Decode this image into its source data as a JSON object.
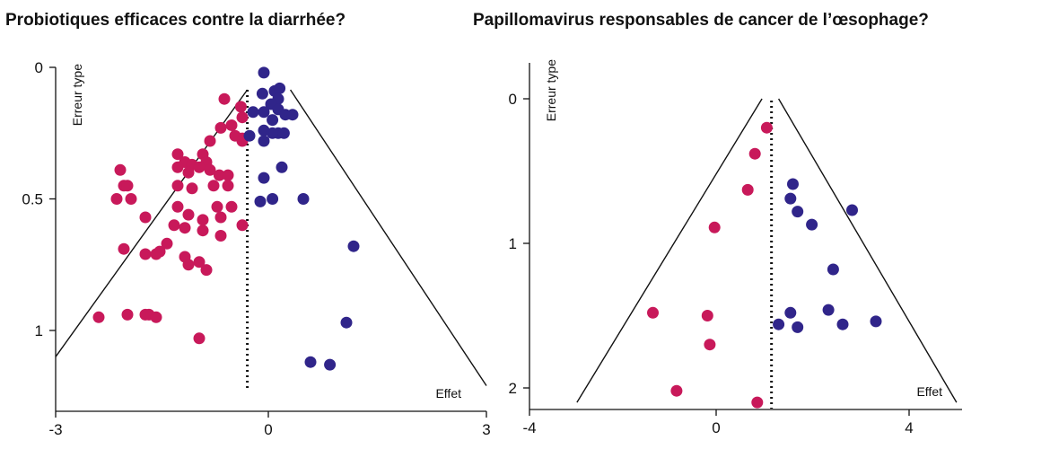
{
  "colors": {
    "red": "#c8195a",
    "blue": "#30258a",
    "ink": "#111111"
  },
  "chart_data": [
    {
      "type": "scatter",
      "title": "Probiotiques efficaces contre la diarrhée?",
      "xlabel": "Effet",
      "ylabel": "Erreur type",
      "xlim": [
        -3,
        3
      ],
      "ylim": [
        0,
        1.25
      ],
      "y_inverted": true,
      "x_ticks": [
        "-3",
        "0",
        "3"
      ],
      "y_ticks": [
        "0",
        "0.5",
        "1"
      ],
      "y_tick_values": [
        0,
        0.5,
        1
      ],
      "mean_line": -0.33,
      "funnel": {
        "apex": [
          -0.33,
          0.0
        ],
        "left_base": [
          -3.0,
          1.1
        ],
        "right_base": [
          3.0,
          1.21
        ]
      },
      "series": [
        {
          "color": "red",
          "points": [
            [
              -0.65,
              0.12
            ],
            [
              -0.42,
              0.15
            ],
            [
              -0.4,
              0.19
            ],
            [
              -0.4,
              0.27
            ],
            [
              -0.55,
              0.22
            ],
            [
              -0.7,
              0.23
            ],
            [
              -0.5,
              0.26
            ],
            [
              -0.4,
              0.28
            ],
            [
              -0.85,
              0.28
            ],
            [
              -1.3,
              0.33
            ],
            [
              -1.2,
              0.36
            ],
            [
              -1.1,
              0.37
            ],
            [
              -0.95,
              0.33
            ],
            [
              -0.9,
              0.36
            ],
            [
              -1.0,
              0.38
            ],
            [
              -1.3,
              0.38
            ],
            [
              -1.15,
              0.4
            ],
            [
              -0.85,
              0.39
            ],
            [
              -2.1,
              0.39
            ],
            [
              -0.72,
              0.41
            ],
            [
              -0.6,
              0.41
            ],
            [
              -0.8,
              0.45
            ],
            [
              -0.6,
              0.45
            ],
            [
              -1.3,
              0.45
            ],
            [
              -1.1,
              0.46
            ],
            [
              -2.05,
              0.45
            ],
            [
              -2.0,
              0.45
            ],
            [
              -2.15,
              0.5
            ],
            [
              -1.95,
              0.5
            ],
            [
              -1.3,
              0.53
            ],
            [
              -0.55,
              0.53
            ],
            [
              -0.75,
              0.53
            ],
            [
              -1.15,
              0.56
            ],
            [
              -1.75,
              0.57
            ],
            [
              -0.95,
              0.58
            ],
            [
              -0.7,
              0.57
            ],
            [
              -0.4,
              0.6
            ],
            [
              -1.35,
              0.6
            ],
            [
              -1.2,
              0.61
            ],
            [
              -0.95,
              0.62
            ],
            [
              -0.7,
              0.64
            ],
            [
              -1.45,
              0.67
            ],
            [
              -1.55,
              0.7
            ],
            [
              -2.05,
              0.69
            ],
            [
              -1.75,
              0.71
            ],
            [
              -1.6,
              0.71
            ],
            [
              -1.2,
              0.72
            ],
            [
              -1.0,
              0.74
            ],
            [
              -1.15,
              0.75
            ],
            [
              -0.9,
              0.77
            ],
            [
              -1.7,
              0.94
            ],
            [
              -1.75,
              0.94
            ],
            [
              -2.0,
              0.94
            ],
            [
              -1.6,
              0.95
            ],
            [
              -2.4,
              0.95
            ],
            [
              -1.0,
              1.03
            ]
          ]
        },
        {
          "color": "blue",
          "points": [
            [
              -0.1,
              0.02
            ],
            [
              0.05,
              0.09
            ],
            [
              0.12,
              0.08
            ],
            [
              -0.12,
              0.1
            ],
            [
              0.1,
              0.12
            ],
            [
              0.0,
              0.14
            ],
            [
              0.1,
              0.16
            ],
            [
              0.2,
              0.18
            ],
            [
              0.3,
              0.18
            ],
            [
              -0.1,
              0.17
            ],
            [
              0.02,
              0.2
            ],
            [
              -0.25,
              0.17
            ],
            [
              0.1,
              0.25
            ],
            [
              -0.1,
              0.24
            ],
            [
              0.02,
              0.25
            ],
            [
              0.18,
              0.25
            ],
            [
              -0.1,
              0.28
            ],
            [
              -0.3,
              0.26
            ],
            [
              0.15,
              0.38
            ],
            [
              -0.1,
              0.42
            ],
            [
              0.02,
              0.5
            ],
            [
              -0.15,
              0.51
            ],
            [
              0.45,
              0.5
            ],
            [
              1.15,
              0.68
            ],
            [
              1.05,
              0.97
            ],
            [
              0.55,
              1.12
            ],
            [
              0.82,
              1.13
            ]
          ]
        }
      ]
    },
    {
      "type": "scatter",
      "title": "Papillomavirus responsables de cancer de l’œsophage?",
      "xlabel": "Effet",
      "ylabel": "Erreur type",
      "xlim": [
        -4,
        5
      ],
      "ylim": [
        -0.12,
        2.1
      ],
      "y_inverted": true,
      "x_ticks": [
        "-4",
        "0",
        "4"
      ],
      "x_tick_values": [
        -4,
        0,
        4
      ],
      "y_ticks": [
        "0",
        "1",
        "2"
      ],
      "y_tick_values": [
        0,
        1,
        2
      ],
      "mean_line": 1.1,
      "funnel": {
        "apex_left": [
          0.9,
          0.0
        ],
        "apex_right": [
          1.25,
          0.0
        ],
        "left_base": [
          -3.0,
          2.1
        ],
        "right_base": [
          5.0,
          2.1
        ]
      },
      "series": [
        {
          "color": "red",
          "points": [
            [
              1.0,
              0.2
            ],
            [
              0.75,
              0.38
            ],
            [
              0.6,
              0.63
            ],
            [
              -0.1,
              0.89
            ],
            [
              -1.4,
              1.48
            ],
            [
              -0.25,
              1.5
            ],
            [
              -0.2,
              1.7
            ],
            [
              -0.9,
              2.02
            ],
            [
              0.8,
              2.1
            ]
          ]
        },
        {
          "color": "blue",
          "points": [
            [
              1.55,
              0.59
            ],
            [
              1.5,
              0.69
            ],
            [
              1.65,
              0.78
            ],
            [
              1.95,
              0.87
            ],
            [
              2.8,
              0.77
            ],
            [
              2.4,
              1.18
            ],
            [
              1.5,
              1.48
            ],
            [
              2.3,
              1.46
            ],
            [
              1.25,
              1.56
            ],
            [
              1.65,
              1.58
            ],
            [
              2.6,
              1.56
            ],
            [
              3.3,
              1.54
            ]
          ]
        }
      ]
    }
  ]
}
